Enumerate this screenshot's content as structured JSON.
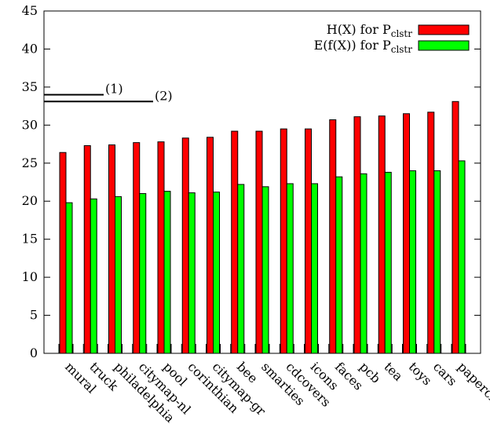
{
  "chart_data": {
    "type": "bar",
    "categories": [
      "mural",
      "truck",
      "philadelphia",
      "citymap-nl",
      "pool",
      "corinthian",
      "citymap-gr",
      "bee",
      "smarties",
      "cdcovers",
      "icons",
      "faces",
      "pcb",
      "tea",
      "toys",
      "cars",
      "paperclips"
    ],
    "series": [
      {
        "name": "H(X) for P",
        "name_sub": "clstr",
        "color": "#ff0000",
        "values": [
          26.4,
          27.3,
          27.4,
          27.7,
          27.8,
          28.3,
          28.4,
          29.2,
          29.2,
          29.5,
          29.5,
          30.7,
          31.1,
          31.2,
          31.5,
          31.7,
          33.1
        ]
      },
      {
        "name": "E(f(X)) for P",
        "name_sub": "clstr",
        "color": "#00ff00",
        "values": [
          19.8,
          20.3,
          20.6,
          21.0,
          21.3,
          21.1,
          21.2,
          22.2,
          21.9,
          22.3,
          22.3,
          23.2,
          23.6,
          23.8,
          24.0,
          24.0,
          25.3
        ]
      }
    ],
    "ylim": [
      0,
      45
    ],
    "yticks": [
      "0",
      "5",
      "10",
      "15",
      "20",
      "25",
      "30",
      "35",
      "40",
      "45"
    ],
    "title": "",
    "xlabel": "",
    "ylabel": "",
    "legend_position": "top-right",
    "grid": false,
    "annotations": [
      {
        "label": "(1)",
        "value": 34.0
      },
      {
        "label": "(2)",
        "value": 33.1
      }
    ]
  }
}
